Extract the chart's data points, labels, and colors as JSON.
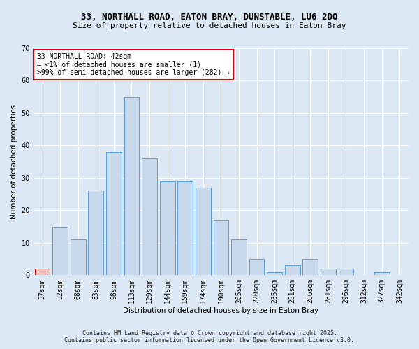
{
  "title1": "33, NORTHALL ROAD, EATON BRAY, DUNSTABLE, LU6 2DQ",
  "title2": "Size of property relative to detached houses in Eaton Bray",
  "xlabel": "Distribution of detached houses by size in Eaton Bray",
  "ylabel": "Number of detached properties",
  "categories": [
    "37sqm",
    "52sqm",
    "68sqm",
    "83sqm",
    "98sqm",
    "113sqm",
    "129sqm",
    "144sqm",
    "159sqm",
    "174sqm",
    "190sqm",
    "205sqm",
    "220sqm",
    "235sqm",
    "251sqm",
    "266sqm",
    "281sqm",
    "296sqm",
    "312sqm",
    "327sqm",
    "342sqm"
  ],
  "values": [
    2,
    15,
    11,
    26,
    38,
    55,
    36,
    29,
    29,
    27,
    17,
    11,
    5,
    1,
    3,
    5,
    2,
    2,
    0,
    1,
    0
  ],
  "bar_color": "#c8d9ec",
  "bar_edge_color": "#5b9bd5",
  "annotation_text": "33 NORTHALL ROAD: 42sqm\n← <1% of detached houses are smaller (1)\n>99% of semi-detached houses are larger (282) →",
  "annotation_box_color": "#ffffff",
  "annotation_box_edge": "#cc0000",
  "highlight_bar_index": 0,
  "highlight_bar_color": "#f5c0c0",
  "highlight_bar_edge": "#cc0000",
  "background_color": "#dce9f5",
  "plot_bg_color": "#dce9f5",
  "footer_line1": "Contains HM Land Registry data © Crown copyright and database right 2025.",
  "footer_line2": "Contains public sector information licensed under the Open Government Licence v3.0.",
  "ylim": [
    0,
    70
  ],
  "yticks": [
    0,
    10,
    20,
    30,
    40,
    50,
    60,
    70
  ],
  "title1_fontsize": 9,
  "title2_fontsize": 8,
  "axis_label_fontsize": 7.5,
  "tick_fontsize": 7,
  "annot_fontsize": 7,
  "footer_fontsize": 6
}
